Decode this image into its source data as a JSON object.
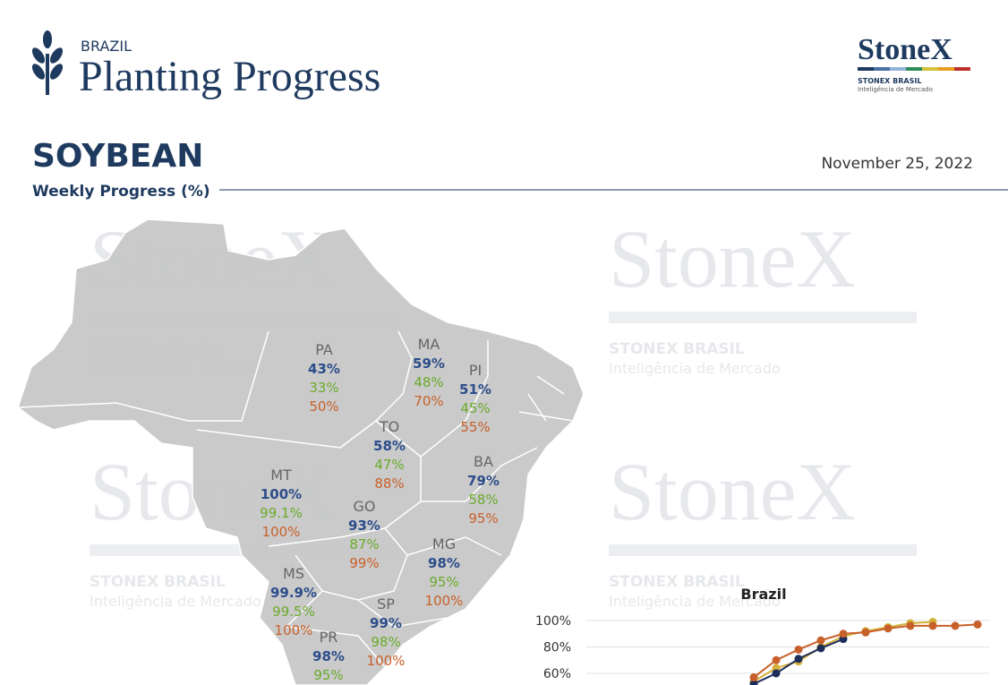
{
  "header": {
    "country": "BRAZIL",
    "title": "Planting Progress",
    "logo": "StoneX",
    "logo_sub": "STONEX BRASIL",
    "logo_tagline": "Inteligência de Mercado"
  },
  "section": {
    "crop": "SOYBEAN",
    "date": "November 25, 2022",
    "subtitle": "Weekly Progress (%)"
  },
  "watermark": {
    "brand": "StoneX",
    "sub": "STONEX BRASIL",
    "tagline": "Inteligência de Mercado"
  },
  "states": [
    {
      "name": "PA",
      "values": [
        "43%",
        "33%",
        "50%"
      ]
    },
    {
      "name": "MA",
      "values": [
        "59%",
        "48%",
        "70%"
      ]
    },
    {
      "name": "PI",
      "values": [
        "51%",
        "45%",
        "55%"
      ]
    },
    {
      "name": "TO",
      "values": [
        "58%",
        "47%",
        "88%"
      ]
    },
    {
      "name": "BA",
      "values": [
        "79%",
        "58%",
        "95%"
      ]
    },
    {
      "name": "MT",
      "values": [
        "100%",
        "99.1%",
        "100%"
      ]
    },
    {
      "name": "GO",
      "values": [
        "93%",
        "87%",
        "99%"
      ]
    },
    {
      "name": "MG",
      "values": [
        "98%",
        "95%",
        "100%"
      ]
    },
    {
      "name": "MS",
      "values": [
        "99.9%",
        "99.5%",
        "100%"
      ]
    },
    {
      "name": "SP",
      "values": [
        "99%",
        "98%",
        "100%"
      ]
    },
    {
      "name": "PR",
      "values": [
        "98%",
        "95%"
      ]
    }
  ],
  "chart_data": {
    "type": "line",
    "title": "Brazil",
    "categories": [
      null,
      null,
      null,
      null,
      null,
      null,
      null,
      null,
      null,
      null,
      null
    ],
    "ylim": [
      50,
      100
    ],
    "yticks": [
      {
        "value": 60,
        "label": "60%"
      },
      {
        "value": 80,
        "label": "80%"
      },
      {
        "value": 100,
        "label": "100%"
      }
    ],
    "grid": true,
    "series": [
      {
        "color": "#d4b23a",
        "values": [
          54,
          64,
          69,
          80,
          88,
          92,
          95,
          98,
          99,
          null,
          null
        ]
      },
      {
        "color": "#1f2d5a",
        "values": [
          52,
          60,
          71,
          79,
          86,
          null,
          null,
          null,
          null,
          null,
          null
        ]
      },
      {
        "color": "#c8602a",
        "values": [
          57,
          70,
          78,
          85,
          90,
          91,
          94,
          96,
          96,
          96,
          97
        ]
      }
    ]
  }
}
